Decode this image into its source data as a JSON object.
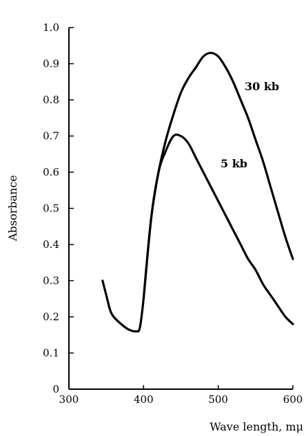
{
  "chart_data": {
    "type": "line",
    "xlabel": "Wave length, mμ",
    "ylabel": "Absorbance",
    "xlim": [
      300,
      600
    ],
    "ylim": [
      0,
      1.0
    ],
    "x_ticks": [
      "300",
      "400",
      "500",
      "600"
    ],
    "y_ticks": [
      "0",
      "0.1",
      "0.2",
      "0.3",
      "0.4",
      "0.5",
      "0.6",
      "0.7",
      "0.8",
      "0.9",
      "1.0"
    ],
    "grid": false,
    "series": [
      {
        "name": "30 kb",
        "x": [
          400,
          410,
          420,
          430,
          440,
          450,
          460,
          470,
          480,
          490,
          500,
          510,
          520,
          530,
          540,
          550,
          560,
          570,
          580,
          590,
          600
        ],
        "y": [
          0.25,
          0.47,
          0.6,
          0.69,
          0.76,
          0.82,
          0.86,
          0.89,
          0.92,
          0.93,
          0.92,
          0.89,
          0.85,
          0.8,
          0.75,
          0.69,
          0.63,
          0.56,
          0.49,
          0.42,
          0.36
        ]
      },
      {
        "name": "5 kb",
        "x": [
          345,
          350,
          355,
          360,
          370,
          380,
          390,
          395,
          400,
          410,
          420,
          430,
          440,
          450,
          460,
          470,
          480,
          490,
          500,
          510,
          520,
          530,
          540,
          550,
          560,
          570,
          580,
          590,
          600
        ],
        "y": [
          0.3,
          0.26,
          0.22,
          0.2,
          0.18,
          0.165,
          0.16,
          0.17,
          0.25,
          0.47,
          0.6,
          0.66,
          0.7,
          0.7,
          0.68,
          0.64,
          0.6,
          0.56,
          0.52,
          0.48,
          0.44,
          0.4,
          0.36,
          0.33,
          0.29,
          0.26,
          0.23,
          0.2,
          0.18
        ]
      }
    ]
  }
}
